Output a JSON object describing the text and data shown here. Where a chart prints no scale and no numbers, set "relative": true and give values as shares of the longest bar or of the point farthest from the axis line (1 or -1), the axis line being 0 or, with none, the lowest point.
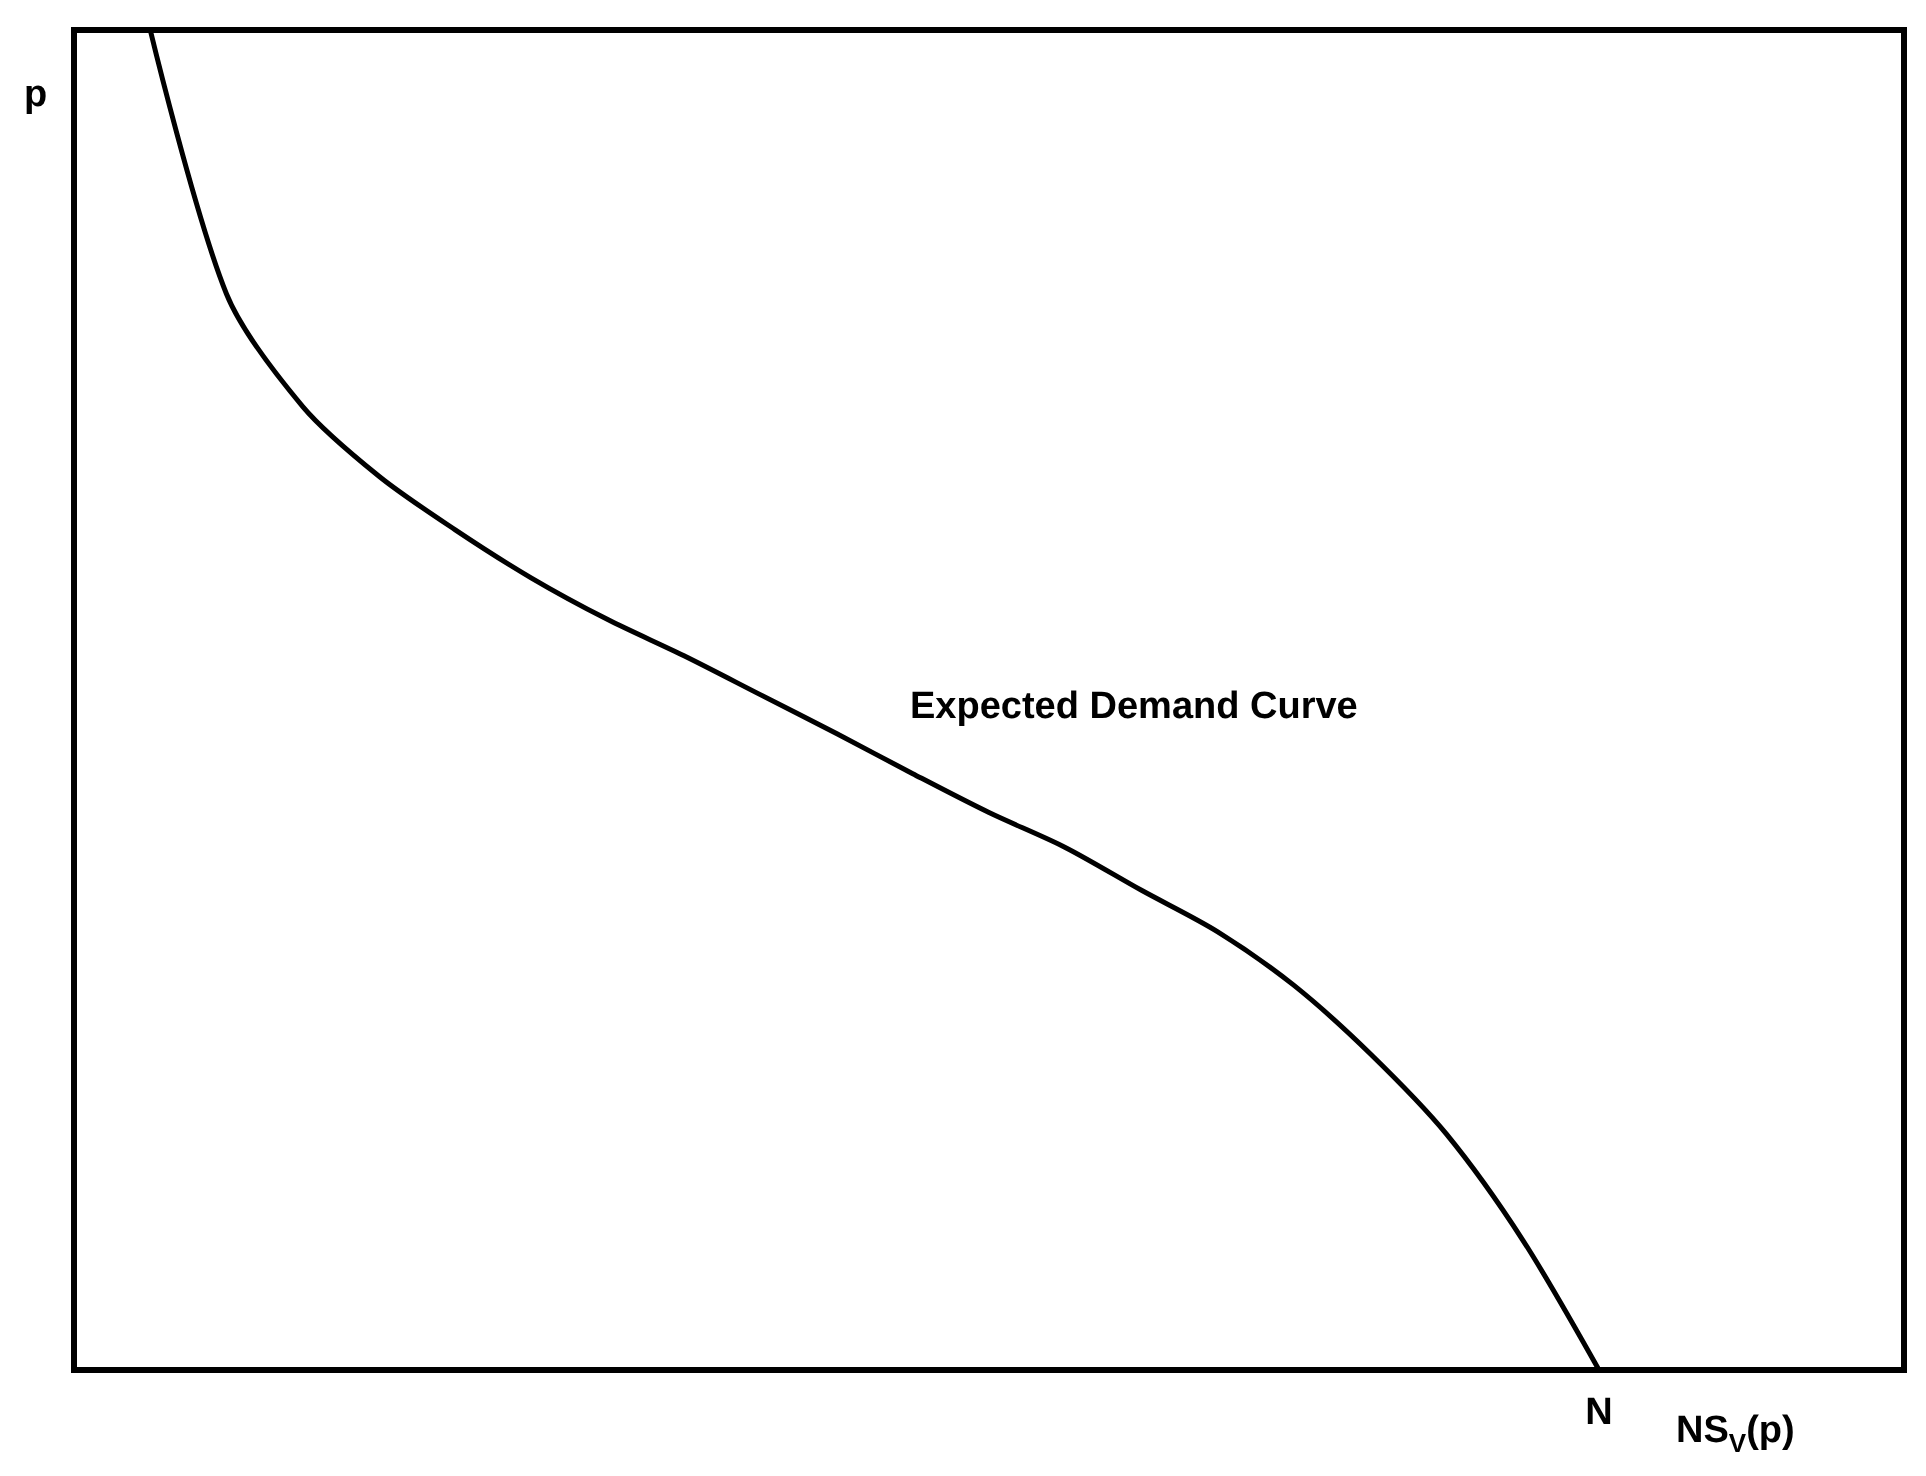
{
  "chart_data": {
    "type": "line",
    "relative": true,
    "xlabel": "NS$_{V}$(p)",
    "ylabel": "p",
    "annotations": [
      "Expected Demand Curve",
      "N"
    ],
    "color": "#000000",
    "marker": "none",
    "line_style": "solid",
    "categories": [
      null,
      null,
      null,
      null,
      null,
      null,
      null,
      null,
      null,
      null,
      null,
      null,
      null,
      null,
      null,
      null,
      null,
      null,
      null,
      null,
      null,
      null,
      null,
      null,
      null
    ],
    "values": [
      null,
      1.0,
      0.803,
      0.719,
      0.667,
      0.627,
      0.591,
      0.56,
      0.533,
      0.504,
      0.475,
      0.445,
      0.416,
      0.39,
      0.358,
      0.327,
      0.287,
      0.236,
      0.176,
      0.097,
      0,
      null,
      null,
      null,
      null
    ]
  }
}
